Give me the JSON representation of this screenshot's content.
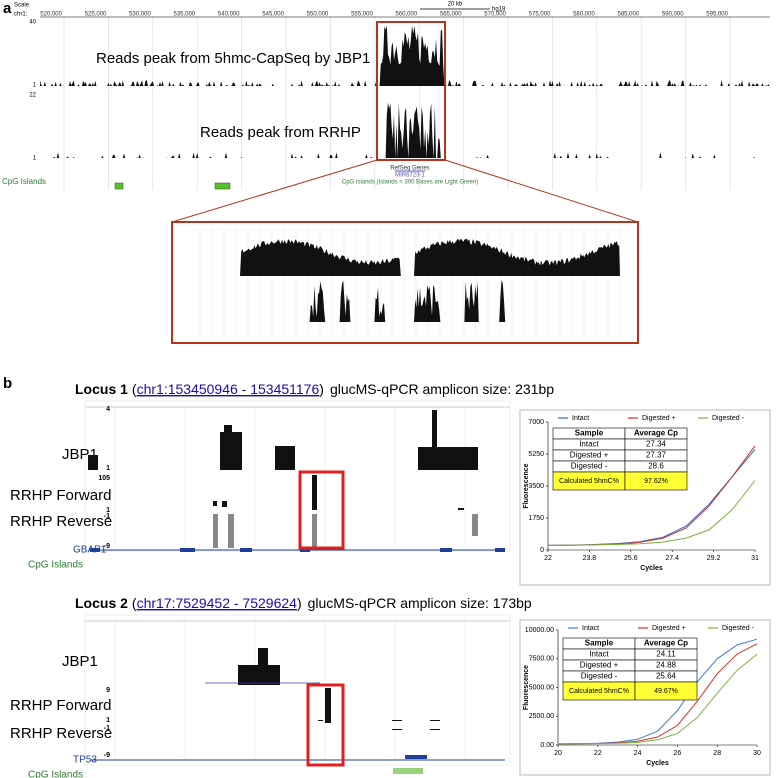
{
  "panel_a": {
    "letter": "a",
    "scale_label": "Scale",
    "chr_label": "chr1:",
    "scale_bar": "20 kb",
    "assembly": "hg18",
    "positions": [
      "520,000",
      "525,000",
      "530,000",
      "535,000",
      "540,000",
      "545,000",
      "550,000",
      "555,000",
      "560,000",
      "565,000",
      "570,000",
      "575,000",
      "580,000",
      "585,000",
      "590,000",
      "595,000"
    ],
    "track1_max": "40",
    "track1_min": "1",
    "track2_max": "22",
    "track2_min": "1",
    "jbp1_label": "Reads peak from 5hmc-CapSeq by JBP1",
    "rrhp_label": "Reads peak from RRHP",
    "refseq": "RefSeq Genes",
    "gene": "MIR6723-1",
    "cpg_note": "CpG Islands (Islands < 300 Bases are Light Green)",
    "cpg_label": "CpG Islands"
  },
  "panel_b": {
    "letter": "b",
    "loci": [
      {
        "title": "Locus 1",
        "open": "(",
        "link": "chr1:153450946 - 153451176",
        "close": ")",
        "amplicon": "glucMS-qPCR amplicon size: 231bp",
        "tracks": [
          "JBP1",
          "RRHP Forward",
          "RRHP Reverse"
        ],
        "gene": "GBAP1",
        "cpg": "CpG Islands",
        "scale_numbers": [
          "4",
          "1",
          "105",
          "1",
          "-1",
          "-9"
        ]
      },
      {
        "title": "Locus 2",
        "open": "(",
        "link": "chr17:7529452 - 7529624",
        "close": ")",
        "amplicon": "glucMS-qPCR amplicon size: 173bp",
        "tracks": [
          "JBP1",
          "RRHP Forward",
          "RRHP Reverse"
        ],
        "gene": "TP53",
        "cpg": "CpG Islands",
        "scale_numbers": [
          "9",
          "1",
          "-1",
          "-9"
        ]
      }
    ]
  },
  "chart_data": [
    {
      "type": "line",
      "x_label": "Cycles",
      "y_label": "Fluorescence",
      "x": [
        22,
        23,
        24,
        25,
        26,
        27,
        28,
        29,
        30,
        31
      ],
      "series": [
        {
          "name": "Intact",
          "color": "#3a5fcd",
          "values": [
            250,
            270,
            300,
            350,
            450,
            700,
            1300,
            2500,
            4000,
            5500
          ]
        },
        {
          "name": "Digested +",
          "color": "#c0392b",
          "values": [
            250,
            265,
            290,
            330,
            420,
            650,
            1200,
            2400,
            4000,
            5700
          ]
        },
        {
          "name": "Digested -",
          "color": "#7cb342",
          "values": [
            250,
            260,
            280,
            300,
            340,
            430,
            650,
            1100,
            2200,
            3800
          ]
        }
      ],
      "xlim": [
        22,
        31
      ],
      "xticks": [
        22,
        23.8,
        25.6,
        27.4,
        29.2,
        31
      ],
      "ylim": [
        0,
        7000
      ],
      "yticks": [
        0,
        1750,
        3500,
        5250,
        7000
      ],
      "table": {
        "header": [
          "Sample",
          "Average Cp"
        ],
        "rows": [
          [
            "Intact",
            "27.34"
          ],
          [
            "Digested +",
            "27.37"
          ],
          [
            "Digested -",
            "28.6"
          ],
          [
            "Calculated 5hmC%",
            "97.62%"
          ]
        ]
      }
    },
    {
      "type": "line",
      "x_label": "Cycles",
      "y_label": "Fluorescence",
      "x": [
        20,
        21,
        22,
        23,
        24,
        25,
        26,
        27,
        28,
        29,
        30
      ],
      "series": [
        {
          "name": "Intact",
          "color": "#3a7bd5",
          "values": [
            100,
            120,
            150,
            250,
            500,
            1200,
            3000,
            5500,
            7500,
            8700,
            9200
          ]
        },
        {
          "name": "Digested +",
          "color": "#d0312d",
          "values": [
            100,
            110,
            130,
            180,
            330,
            700,
            1700,
            3800,
            6200,
            7900,
            8800
          ]
        },
        {
          "name": "Digested -",
          "color": "#7cb342",
          "values": [
            100,
            105,
            120,
            150,
            230,
            450,
            1000,
            2400,
            4500,
            6500,
            7900
          ]
        }
      ],
      "xlim": [
        20,
        30
      ],
      "xticks": [
        20,
        22,
        24,
        26,
        28,
        30
      ],
      "ylim": [
        0,
        10000
      ],
      "yticks": [
        {
          "value": 0,
          "label": "0.00"
        },
        {
          "value": 2500,
          "label": "2500.00"
        },
        {
          "value": 5000,
          "label": "5000.00"
        },
        {
          "value": 7500,
          "label": "7500.00"
        },
        {
          "value": 10000,
          "label": "10000.00"
        }
      ],
      "table": {
        "header": [
          "Sample",
          "Average Cp"
        ],
        "rows": [
          [
            "Intact",
            "24.11"
          ],
          [
            "Digested +",
            "24.88"
          ],
          [
            "Digested -",
            "25.64"
          ],
          [
            "Calculated 5hmC%",
            "49.67%"
          ]
        ]
      }
    }
  ]
}
